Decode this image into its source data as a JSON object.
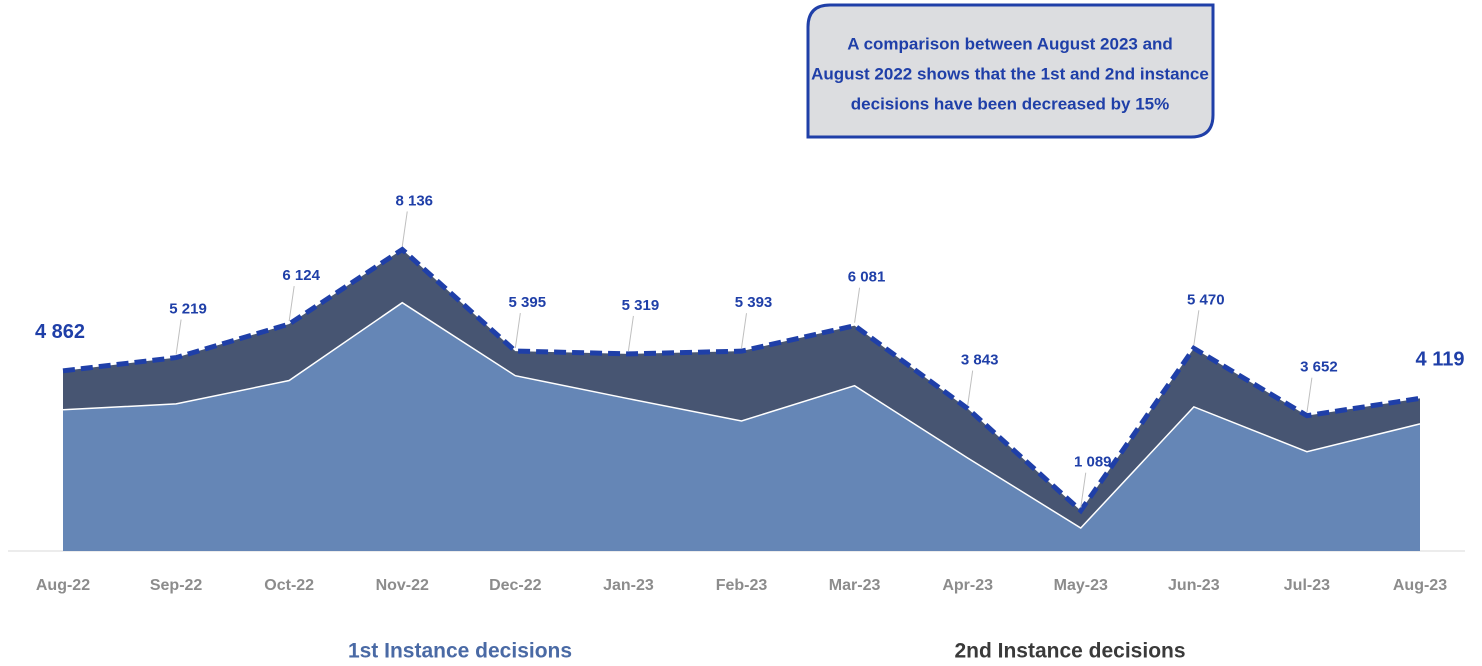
{
  "chart_data": {
    "type": "stacked_area",
    "annotation": [
      "A comparison between  August 2023 and",
      "August 2022 shows that the 1st and 2nd instance",
      "decisions have been decreased by 15%"
    ],
    "categories": [
      "Aug-22",
      "Sep-22",
      "Oct-22",
      "Nov-22",
      "Dec-22",
      "Jan-23",
      "Feb-23",
      "Mar-23",
      "Apr-23",
      "May-23",
      "Jun-23",
      "Jul-23",
      "Aug-23"
    ],
    "series": [
      {
        "name": "1st Instance decisions",
        "color": "#6586b6",
        "values": [
          3810,
          3970,
          4600,
          6700,
          4730,
          4110,
          3510,
          4460,
          2510,
          620,
          3890,
          2680,
          3430
        ]
      },
      {
        "name": "2nd Instance decisions",
        "color": "#475572",
        "values": [
          1052,
          1249,
          1524,
          1436,
          665,
          1209,
          1883,
          1621,
          1333,
          469,
          1580,
          972,
          689
        ]
      }
    ],
    "totals": {
      "color": "#1f3fa8",
      "values": [
        4862,
        5219,
        6124,
        8136,
        5395,
        5319,
        5393,
        6081,
        3843,
        1089,
        5470,
        3652,
        4119
      ],
      "value_labels": [
        "4 862",
        "5 219",
        "6 124",
        "8 136",
        "5 395",
        "5 319",
        "5 393",
        "6 081",
        "3 843",
        "1 089",
        "5 470",
        "3 652",
        "4 119"
      ]
    },
    "ylim": [
      0,
      8500
    ]
  }
}
